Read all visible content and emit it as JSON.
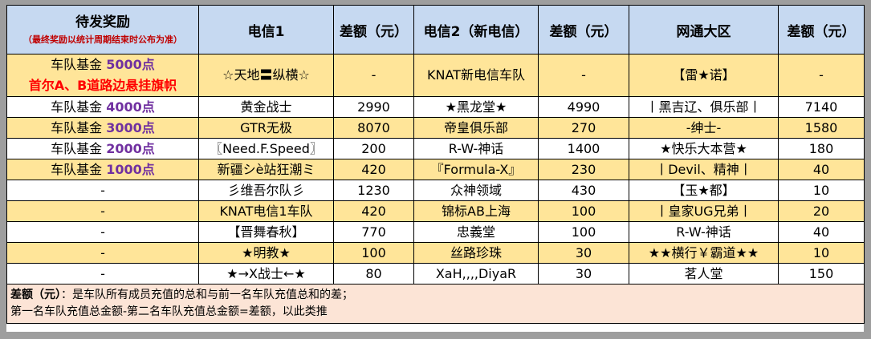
{
  "header": {
    "reward_title": "待发奖励",
    "reward_note": "（最终奖励以统计周期结束时公布为准）",
    "col_telecom1": "电信1",
    "col_diff1": "差额（元）",
    "col_telecom2": "电信2（新电信）",
    "col_diff2": "差额（元）",
    "col_netcom": "网通大区",
    "col_diff3": "差额（元）"
  },
  "rows": [
    {
      "reward_text": "车队基金 ",
      "reward_amount": "5000点",
      "reward_extra": "首尔A、B道路边悬挂旗帜",
      "team1": "☆天地〓纵横☆",
      "diff1": "-",
      "team2": "KNAT新电信车队",
      "diff2": "-",
      "team3": "【雷★诺】",
      "diff3": "-"
    },
    {
      "reward_text": "车队基金 ",
      "reward_amount": "4000点",
      "team1": "黄金战士",
      "diff1": "2990",
      "team2": "★黑龙堂★",
      "diff2": "4990",
      "team3": "丨黑吉辽、俱乐部丨",
      "diff3": "7140"
    },
    {
      "reward_text": "车队基金 ",
      "reward_amount": "3000点",
      "team1": "GTR无极",
      "diff1": "8070",
      "team2": "帝皇俱乐部",
      "diff2": "270",
      "team3": "-绅士-",
      "diff3": "1580"
    },
    {
      "reward_text": "车队基金 ",
      "reward_amount": "2000点",
      "team1": "〖Need.F.Speed〗",
      "diff1": "200",
      "team2": "R-W-神话",
      "diff2": "1400",
      "team3": "★快乐大本营★",
      "diff3": "180"
    },
    {
      "reward_text": "车队基金 ",
      "reward_amount": "1000点",
      "team1": "新疆シè站狂潮ミ",
      "diff1": "420",
      "team2": "『Formula-X』",
      "diff2": "230",
      "team3": "丨Devil、精神丨",
      "diff3": "40"
    },
    {
      "reward_text": "-",
      "team1": "彡维吾尔队彡",
      "diff1": "1230",
      "team2": "众神领域",
      "diff2": "430",
      "team3": "【玉★都】",
      "diff3": "10"
    },
    {
      "reward_text": "-",
      "team1": "KNAT电信1车队",
      "diff1": "420",
      "team2": "锦标AB上海",
      "diff2": "100",
      "team3": "丨皇家UG兄弟丨",
      "diff3": "20"
    },
    {
      "reward_text": "-",
      "team1": "【晋舞春秋】",
      "diff1": "770",
      "team2": "忠義堂",
      "diff2": "100",
      "team3": "R-W-神话",
      "diff3": "40"
    },
    {
      "reward_text": "-",
      "team1": "★明教★",
      "diff1": "100",
      "team2": "丝路珍珠",
      "diff2": "30",
      "team3": "★★横行￥霸道★★",
      "diff3": "10"
    },
    {
      "reward_text": "-",
      "team1": "★→X战士←★",
      "diff1": "80",
      "team2": "XaH,,,,DiyaR",
      "diff2": "30",
      "team3": "茗人堂",
      "diff3": "150"
    }
  ],
  "footer": {
    "label": "差额（元）",
    "line1": "：是车队所有成员充值的总和与前一名车队充值总和的差；",
    "line2": "第一名车队充值总金额-第二名车队充值总金额=差额，以此类推"
  },
  "colors": {
    "header_bg": "#c6d9f1",
    "gold_row": "#ffe599",
    "footer_bg": "#fce4d6",
    "fund_purple": "#7030a0",
    "prize_red": "#ff0000",
    "note_red": "#c00000"
  }
}
